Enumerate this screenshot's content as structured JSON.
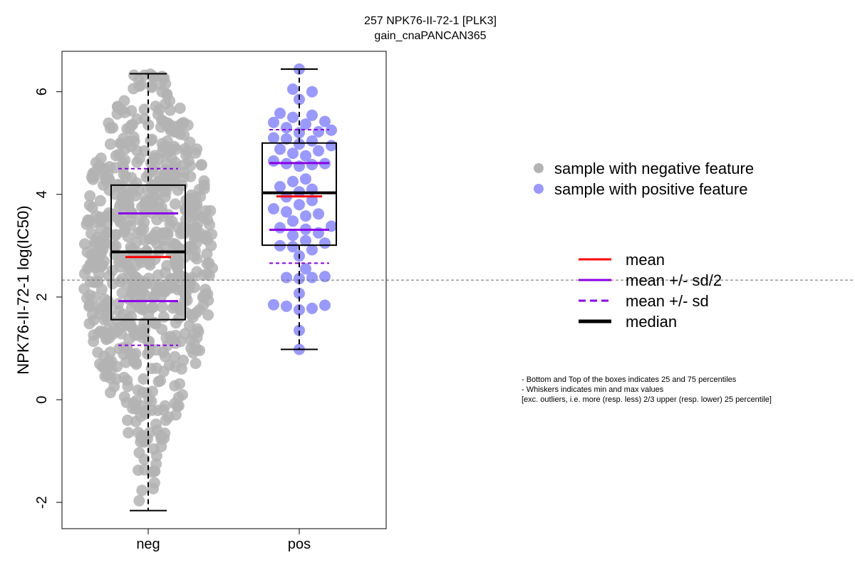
{
  "chart_data": {
    "type": "scatter",
    "title": "257 NPK76-II-72-1 [PLK3]",
    "subtitle": "gain_cnaPANCAN365",
    "ylabel": "NPK76-II-72-1 log(IC50)",
    "xlabel": "",
    "categories": [
      "neg",
      "pos"
    ],
    "ylim": [
      -2.5,
      6.8
    ],
    "yticks": [
      -2,
      0,
      2,
      4,
      6
    ],
    "ytick_labels": [
      "-2",
      "0",
      "2",
      "4",
      "6"
    ],
    "reference_line": 2.33,
    "legend_position": "right",
    "colors": {
      "neg_points": "#b3b3b3",
      "pos_points": "#9999ff",
      "mean": "#ff0000",
      "sd": "#8b00e6",
      "median": "#000000",
      "reference": "#666666"
    },
    "groups": [
      {
        "name": "neg",
        "n_points": 700,
        "min": -2.16,
        "q1": 1.56,
        "median": 2.88,
        "q3": 4.18,
        "max": 6.35,
        "mean": 2.78,
        "mean_minus_half_sd": 1.92,
        "mean_plus_half_sd": 3.63,
        "mean_minus_sd": 1.06,
        "mean_plus_sd": 4.5
      },
      {
        "name": "pos",
        "n_points": 65,
        "min": 0.98,
        "q1": 3.01,
        "median": 4.03,
        "q3": 5.0,
        "max": 6.44,
        "mean": 3.96,
        "mean_minus_half_sd": 3.31,
        "mean_plus_half_sd": 4.61,
        "mean_minus_sd": 2.66,
        "mean_plus_sd": 5.26,
        "values": [
          6.44,
          6.05,
          5.85,
          5.58,
          5.54,
          5.5,
          5.42,
          5.4,
          5.37,
          5.3,
          5.25,
          5.22,
          5.2,
          5.1,
          5.08,
          5.04,
          4.98,
          4.95,
          4.88,
          4.85,
          4.8,
          4.75,
          4.65,
          4.6,
          4.6,
          4.58,
          4.55,
          4.3,
          4.25,
          4.15,
          4.1,
          4.05,
          3.95,
          3.88,
          3.8,
          3.72,
          3.66,
          3.62,
          3.58,
          3.48,
          3.38,
          3.35,
          3.32,
          3.25,
          3.2,
          3.1,
          3.05,
          3.0,
          2.98,
          2.92,
          2.8,
          2.55,
          2.4,
          2.38,
          2.38,
          2.36,
          2.07,
          1.85,
          1.84,
          1.82,
          1.78,
          1.75,
          1.35,
          0.98,
          6.0
        ]
      }
    ],
    "legend_points": [
      {
        "label": "sample with negative feature",
        "color": "#b3b3b3"
      },
      {
        "label": "sample with positive feature",
        "color": "#9999ff"
      }
    ],
    "legend_lines": [
      {
        "label": "mean",
        "color": "#ff0000",
        "style": "solid"
      },
      {
        "label": "mean +/- sd/2",
        "color": "#8b00e6",
        "style": "solid"
      },
      {
        "label": "mean +/- sd",
        "color": "#8b00e6",
        "style": "dashed"
      },
      {
        "label": "median",
        "color": "#000000",
        "style": "thick"
      }
    ],
    "notes": [
      "- Bottom and Top of the boxes indicates 25 and 75 percentiles",
      "- Whiskers indicates min and max values",
      "[exc. outliers, i.e. more (resp. less) 2/3 upper (resp. lower) 25 percentile]"
    ]
  }
}
